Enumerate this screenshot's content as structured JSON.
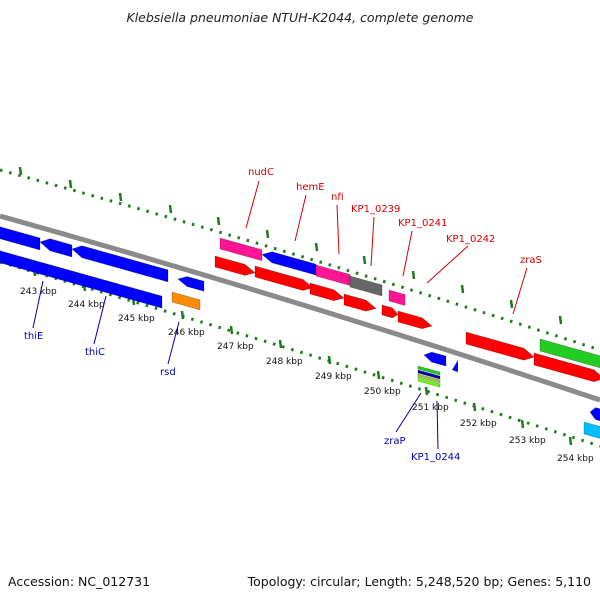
{
  "title": "Klebsiella pneumoniae NTUH-K2044, complete genome",
  "footer": {
    "accession": "Accession: NC_012731",
    "summary": "Topology: circular; Length: 5,248,520 bp; Genes: 5,110"
  },
  "colors": {
    "backbone": "#8a8a8a",
    "tick": "#1e7a1e",
    "label_red": "#d40000",
    "label_blue": "#0000b0",
    "gene_red": "#ff0000",
    "gene_blue": "#0000ff",
    "gene_pink": "#ff1493",
    "gene_green": "#22cc22",
    "gene_gray": "#666666",
    "gene_orange": "#ff8c00",
    "gene_cyan": "#00bfff"
  },
  "kbp_labels": [
    "243 kbp",
    "244 kbp",
    "245 kbp",
    "246 kbp",
    "247 kbp",
    "248 kbp",
    "249 kbp",
    "250 kbp",
    "251 kbp",
    "252 kbp",
    "253 kbp",
    "254 kbp"
  ],
  "gene_labels_top": [
    "nudC",
    "hemE",
    "nfi",
    "KP1_0239",
    "KP1_0241",
    "KP1_0242",
    "zraS"
  ],
  "gene_labels_bottom": [
    "thiE",
    "thiC",
    "rsd",
    "zraP",
    "KP1_0244"
  ]
}
